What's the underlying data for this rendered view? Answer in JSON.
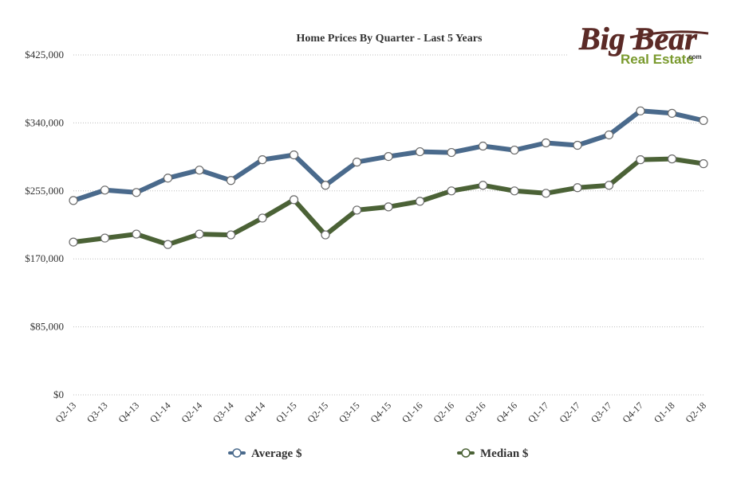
{
  "logo": {
    "line1": "Big Bear",
    "line2": "Real Estate",
    "suffix": ".com",
    "colors": {
      "dark": "#5b2a26",
      "green": "#7a9a2e"
    }
  },
  "chart_data": {
    "type": "line",
    "title": "Home Prices By Quarter - Last 5 Years",
    "xlabel": "",
    "ylabel": "",
    "categories": [
      "Q2-13",
      "Q3-13",
      "Q4-13",
      "Q1-14",
      "Q2-14",
      "Q3-14",
      "Q4-14",
      "Q1-15",
      "Q2-15",
      "Q3-15",
      "Q4-15",
      "Q1-16",
      "Q2-16",
      "Q3-16",
      "Q4-16",
      "Q1-17",
      "Q2-17",
      "Q3-17",
      "Q4-17",
      "Q1-18",
      "Q2-18"
    ],
    "ylim": [
      0,
      425000
    ],
    "yticks": [
      0,
      85000,
      170000,
      255000,
      340000,
      425000
    ],
    "ytick_labels": [
      "$0",
      "$85,000",
      "$170,000",
      "$255,000",
      "$340,000",
      "$425,000"
    ],
    "grid": true,
    "legend_position": "bottom",
    "series": [
      {
        "name": "Average $",
        "color": "#4a6a8c",
        "values": [
          243000,
          256000,
          253000,
          271000,
          281000,
          268000,
          294000,
          300000,
          262000,
          291000,
          298000,
          304000,
          303000,
          311000,
          306000,
          315000,
          312000,
          325000,
          355000,
          352000,
          343000
        ]
      },
      {
        "name": "Median $",
        "color": "#4b6236",
        "values": [
          191000,
          196000,
          201000,
          188000,
          201000,
          200000,
          221000,
          244000,
          200000,
          231000,
          235000,
          242000,
          255000,
          262000,
          255000,
          252000,
          259000,
          262000,
          294000,
          295000,
          289000
        ]
      }
    ]
  }
}
